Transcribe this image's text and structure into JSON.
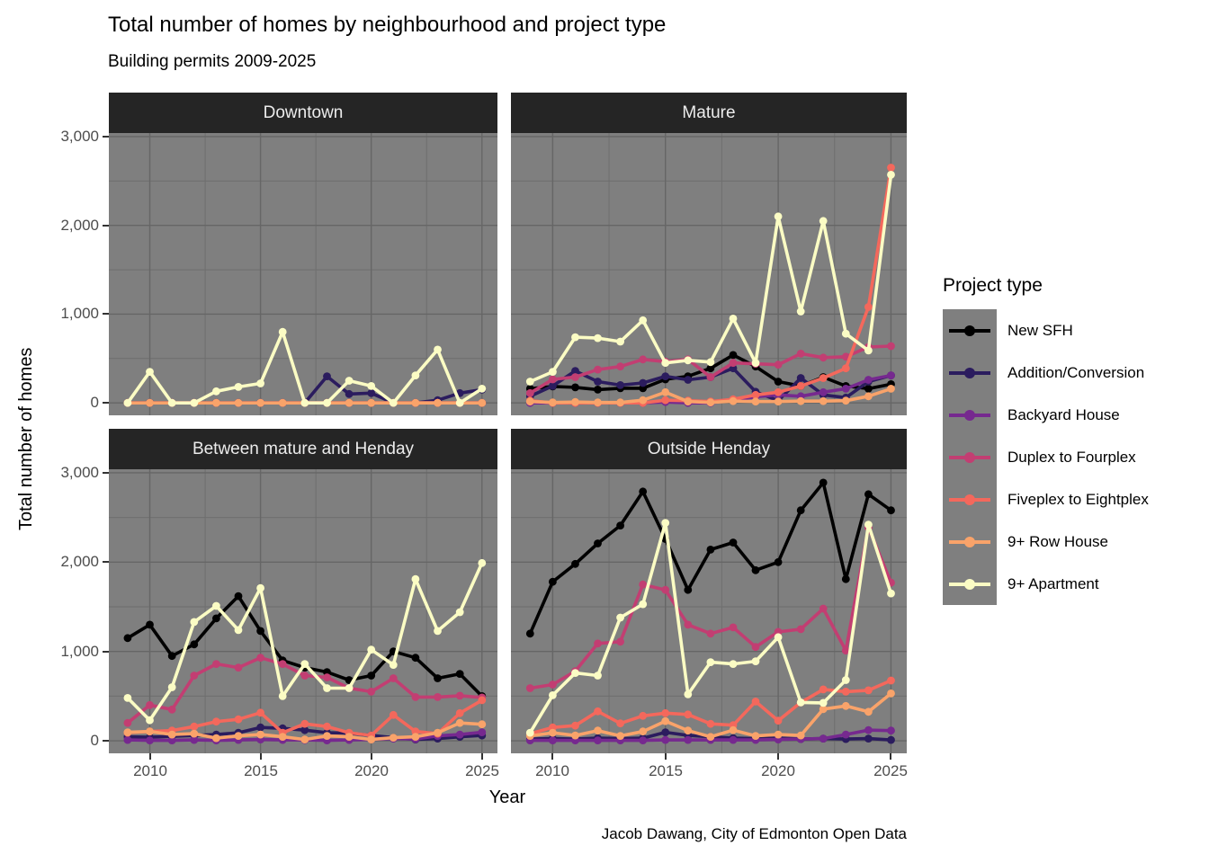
{
  "title": "Total number of homes by neighbourhood and project type",
  "subtitle": "Building permits 2009-2025",
  "caption": "Jacob Dawang, City of Edmonton Open Data",
  "axes": {
    "x_label": "Year",
    "y_label": "Total number of homes",
    "x_tick_labels": [
      "2010",
      "2015",
      "2020",
      "2025"
    ],
    "y_tick_labels": [
      "0",
      "1,000",
      "2,000",
      "3,000"
    ]
  },
  "legend": {
    "title": "Project type",
    "entries": [
      {
        "label": "New SFH",
        "color": "#000000"
      },
      {
        "label": "Addition/Conversion",
        "color": "#2b1c5e"
      },
      {
        "label": "Backyard House",
        "color": "#76298f"
      },
      {
        "label": "Duplex to Fourplex",
        "color": "#c23e72"
      },
      {
        "label": "Fiveplex to Eightplex",
        "color": "#f4685c"
      },
      {
        "label": "9+ Row House",
        "color": "#f9a36a"
      },
      {
        "label": "9+ Apartment",
        "color": "#fbfcc4"
      }
    ]
  },
  "colors": {
    "panel_bg": "#7f7f7f",
    "strip_bg": "#252525",
    "strip_text": "#ececec",
    "grid_major": "#666666",
    "grid_minor": "#6e6e6e",
    "axis_text": "#4d4d4d",
    "tick": "#333333"
  },
  "chart_data": {
    "type": "line",
    "title": "Total number of homes by neighbourhood and project type",
    "subtitle": "Building permits 2009-2025",
    "caption": "Jacob Dawang, City of Edmonton Open Data",
    "xlabel": "Year",
    "ylabel": "Total number of homes",
    "x": [
      2009,
      2010,
      2011,
      2012,
      2013,
      2014,
      2015,
      2016,
      2017,
      2018,
      2019,
      2020,
      2021,
      2022,
      2023,
      2024,
      2025
    ],
    "x_breaks": [
      2010,
      2015,
      2020,
      2025
    ],
    "y_breaks": [
      0,
      1000,
      2000,
      3000
    ],
    "x_minor_breaks": [
      2012.5,
      2017.5,
      2022.5
    ],
    "y_minor_breaks": [
      500,
      1500,
      2500
    ],
    "ylim": [
      0,
      3000
    ],
    "grid": true,
    "legend_title": "Project type",
    "legend_position": "right",
    "series_order": [
      "New SFH",
      "Addition/Conversion",
      "Backyard House",
      "Duplex to Fourplex",
      "Fiveplex to Eightplex",
      "9+ Row House",
      "9+ Apartment"
    ],
    "series_colors": {
      "New SFH": "#000000",
      "Addition/Conversion": "#2b1c5e",
      "Backyard House": "#76298f",
      "Duplex to Fourplex": "#c23e72",
      "Fiveplex to Eightplex": "#f4685c",
      "9+ Row House": "#f9a36a",
      "9+ Apartment": "#fbfcc4"
    },
    "facets": [
      {
        "name": "Downtown",
        "series": [
          {
            "name": "New SFH",
            "values": [
              0,
              0,
              0,
              0,
              0,
              0,
              0,
              0,
              0,
              0,
              0,
              0,
              0,
              0,
              0,
              0,
              0
            ]
          },
          {
            "name": "Addition/Conversion",
            "values": [
              0,
              0,
              0,
              0,
              0,
              0,
              0,
              0,
              0,
              300,
              100,
              110,
              0,
              0,
              30,
              110,
              150
            ]
          },
          {
            "name": "Backyard House",
            "values": [
              0,
              0,
              0,
              0,
              0,
              0,
              0,
              0,
              0,
              0,
              0,
              0,
              0,
              0,
              0,
              0,
              0
            ]
          },
          {
            "name": "Duplex to Fourplex",
            "values": [
              0,
              0,
              0,
              0,
              0,
              0,
              0,
              0,
              0,
              0,
              0,
              0,
              0,
              0,
              0,
              0,
              0
            ]
          },
          {
            "name": "Fiveplex to Eightplex",
            "values": [
              0,
              0,
              0,
              0,
              0,
              0,
              0,
              0,
              0,
              0,
              0,
              0,
              0,
              0,
              0,
              0,
              0
            ]
          },
          {
            "name": "9+ Row House",
            "values": [
              0,
              0,
              0,
              0,
              0,
              0,
              0,
              0,
              0,
              0,
              0,
              0,
              0,
              0,
              0,
              0,
              0
            ]
          },
          {
            "name": "9+ Apartment",
            "values": [
              0,
              350,
              0,
              0,
              130,
              180,
              220,
              800,
              0,
              0,
              250,
              190,
              0,
              310,
              600,
              0,
              160
            ]
          }
        ]
      },
      {
        "name": "Mature",
        "series": [
          {
            "name": "New SFH",
            "values": [
              160,
              185,
              175,
              150,
              165,
              165,
              265,
              300,
              390,
              540,
              410,
              240,
              190,
              290,
              190,
              160,
              210
            ]
          },
          {
            "name": "Addition/Conversion",
            "values": [
              75,
              190,
              360,
              240,
              200,
              225,
              300,
              260,
              290,
              390,
              125,
              25,
              280,
              90,
              60,
              240,
              310
            ]
          },
          {
            "name": "Backyard House",
            "values": [
              0,
              0,
              0,
              0,
              0,
              0,
              10,
              0,
              0,
              30,
              70,
              90,
              75,
              120,
              160,
              260,
              310
            ]
          },
          {
            "name": "Duplex to Fourplex",
            "values": [
              110,
              265,
              290,
              375,
              410,
              490,
              465,
              490,
              290,
              450,
              440,
              430,
              555,
              510,
              520,
              630,
              640
            ]
          },
          {
            "name": "Fiveplex to Eightplex",
            "values": [
              25,
              0,
              0,
              0,
              0,
              0,
              30,
              25,
              15,
              40,
              90,
              120,
              190,
              280,
              390,
              1080,
              2650
            ]
          },
          {
            "name": "9+ Row House",
            "values": [
              15,
              5,
              10,
              5,
              5,
              30,
              120,
              15,
              5,
              20,
              15,
              15,
              20,
              20,
              25,
              75,
              160
            ]
          },
          {
            "name": "9+ Apartment",
            "values": [
              240,
              350,
              740,
              730,
              690,
              930,
              450,
              480,
              460,
              950,
              450,
              2100,
              1030,
              2050,
              780,
              590,
              2570
            ]
          }
        ]
      },
      {
        "name": "Between mature and Henday",
        "series": [
          {
            "name": "New SFH",
            "values": [
              1150,
              1300,
              950,
              1080,
              1370,
              1620,
              1230,
              900,
              820,
              770,
              680,
              730,
              1000,
              930,
              700,
              750,
              500
            ]
          },
          {
            "name": "Addition/Conversion",
            "values": [
              45,
              40,
              50,
              60,
              70,
              90,
              150,
              140,
              120,
              90,
              85,
              60,
              35,
              15,
              25,
              45,
              60
            ]
          },
          {
            "name": "Backyard House",
            "values": [
              10,
              5,
              5,
              10,
              5,
              10,
              15,
              10,
              10,
              5,
              10,
              15,
              25,
              20,
              55,
              70,
              95
            ]
          },
          {
            "name": "Duplex to Fourplex",
            "values": [
              200,
              400,
              350,
              730,
              860,
              820,
              930,
              860,
              730,
              710,
              590,
              550,
              700,
              490,
              490,
              505,
              485
            ]
          },
          {
            "name": "Fiveplex to Eightplex",
            "values": [
              90,
              105,
              115,
              160,
              215,
              240,
              315,
              90,
              190,
              160,
              90,
              60,
              290,
              105,
              80,
              310,
              455
            ]
          },
          {
            "name": "9+ Row House",
            "values": [
              95,
              105,
              70,
              80,
              30,
              55,
              70,
              45,
              15,
              55,
              45,
              15,
              35,
              45,
              90,
              200,
              185
            ]
          },
          {
            "name": "9+ Apartment",
            "values": [
              480,
              230,
              600,
              1330,
              1510,
              1240,
              1710,
              500,
              860,
              590,
              590,
              1020,
              850,
              1810,
              1230,
              1440,
              1990
            ]
          }
        ]
      },
      {
        "name": "Outside Henday",
        "series": [
          {
            "name": "New SFH",
            "values": [
              1200,
              1780,
              1980,
              2210,
              2410,
              2790,
              2260,
              1690,
              2140,
              2220,
              1910,
              2000,
              2580,
              2890,
              1810,
              2760,
              2580
            ]
          },
          {
            "name": "Addition/Conversion",
            "values": [
              20,
              25,
              20,
              30,
              25,
              30,
              95,
              60,
              45,
              30,
              25,
              30,
              20,
              25,
              20,
              25,
              10
            ]
          },
          {
            "name": "Backyard House",
            "values": [
              5,
              5,
              5,
              5,
              5,
              5,
              10,
              10,
              10,
              10,
              10,
              15,
              20,
              25,
              70,
              120,
              115
            ]
          },
          {
            "name": "Duplex to Fourplex",
            "values": [
              590,
              630,
              780,
              1090,
              1110,
              1750,
              1690,
              1300,
              1200,
              1270,
              1050,
              1220,
              1250,
              1480,
              1010,
              2390,
              1770
            ]
          },
          {
            "name": "Fiveplex to Eightplex",
            "values": [
              80,
              150,
              170,
              330,
              195,
              280,
              310,
              295,
              190,
              175,
              440,
              225,
              430,
              575,
              550,
              565,
              675
            ]
          },
          {
            "name": "9+ Row House",
            "values": [
              55,
              90,
              60,
              115,
              55,
              105,
              220,
              115,
              45,
              120,
              55,
              70,
              60,
              355,
              390,
              325,
              530
            ]
          },
          {
            "name": "9+ Apartment",
            "values": [
              90,
              510,
              760,
              730,
              1380,
              1530,
              2440,
              520,
              880,
              860,
              890,
              1160,
              430,
              425,
              680,
              2420,
              1650
            ]
          }
        ]
      }
    ]
  }
}
